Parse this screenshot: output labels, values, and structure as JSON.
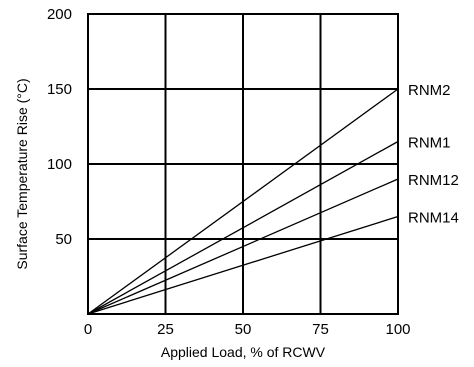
{
  "chart_data": {
    "type": "line",
    "xlabel": "Applied Load, % of RCWV",
    "ylabel": "Surface Temperature Rise (°C)",
    "xlim": [
      0,
      100
    ],
    "ylim": [
      0,
      200
    ],
    "x_ticks": [
      0,
      25,
      50,
      75,
      100
    ],
    "y_ticks": [
      50,
      100,
      150,
      200
    ],
    "grid": true,
    "legend": "none (series labelled at line ends, right side)",
    "series": [
      {
        "name": "RNM2",
        "x": [
          0,
          100
        ],
        "y": [
          0,
          150
        ]
      },
      {
        "name": "RNM1",
        "x": [
          0,
          100
        ],
        "y": [
          0,
          115
        ]
      },
      {
        "name": "RNM12",
        "x": [
          0,
          100
        ],
        "y": [
          0,
          90
        ]
      },
      {
        "name": "RNM14",
        "x": [
          0,
          100
        ],
        "y": [
          0,
          65
        ]
      }
    ]
  }
}
